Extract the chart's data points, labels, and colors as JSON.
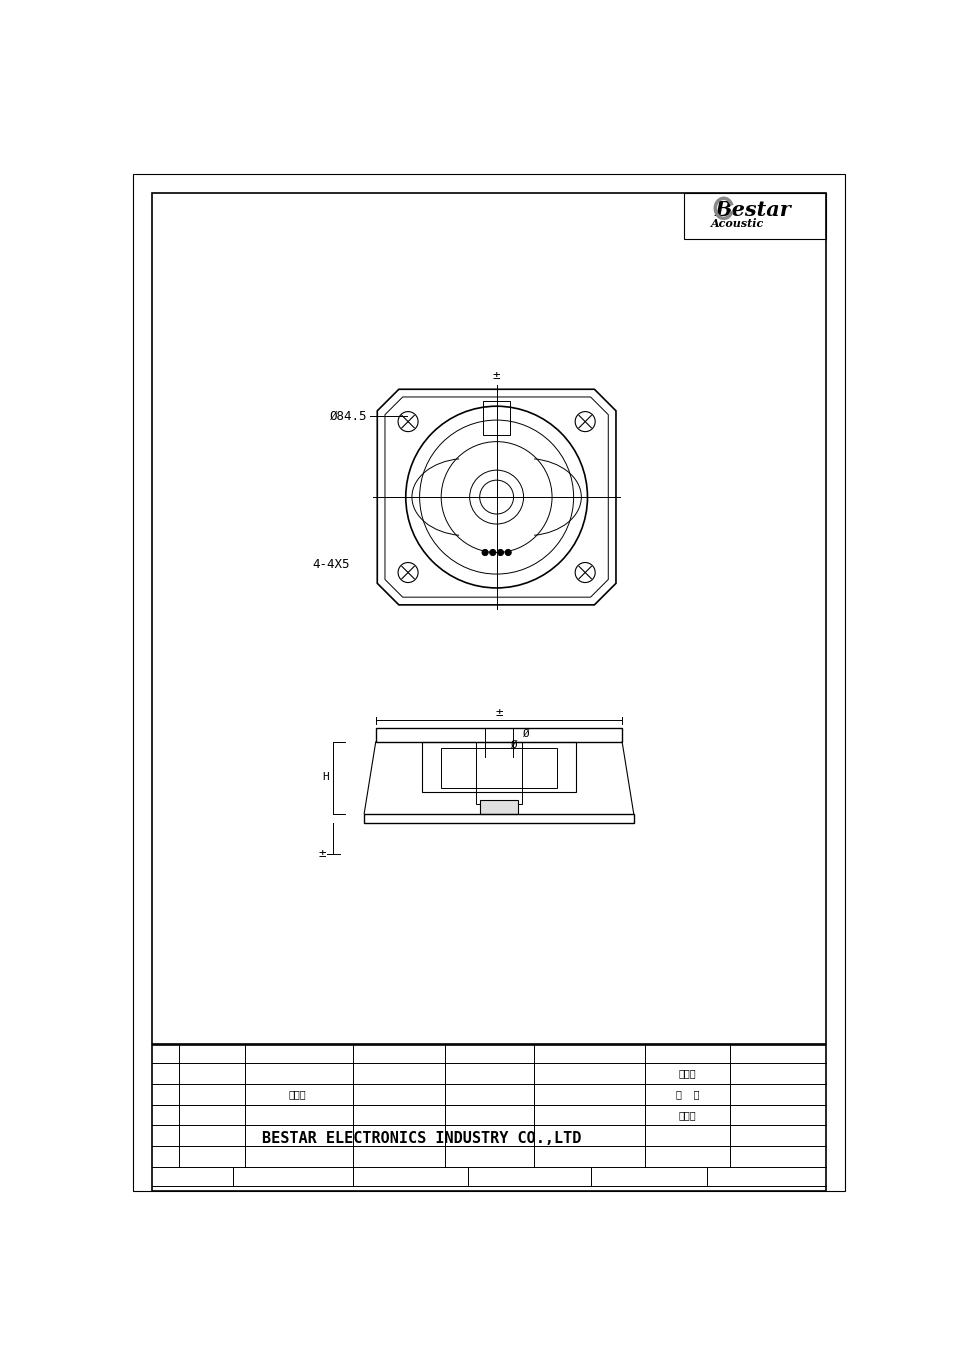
{
  "page_bg": "#ffffff",
  "line_color": "#000000",
  "title_company": "BESTAR ELECTRONICS INDUSTRY CO.,LTD",
  "table_texts": {
    "r1c6": "汪风声",
    "r2c3": "汪风声",
    "r2c6": "王  平",
    "r3c6": "张秀琴"
  },
  "dim_phi845": "Ø84.5",
  "dim_445": "4-4X5",
  "dim_phi": "Ø",
  "dim_pm": "±",
  "dim_h": "H"
}
